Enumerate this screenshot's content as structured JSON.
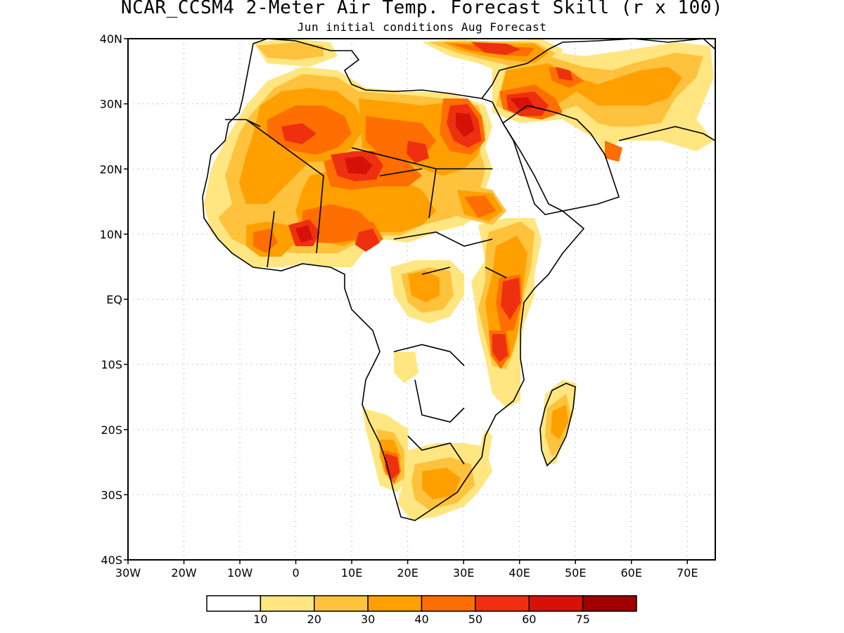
{
  "header": {
    "title": "NCAR_CCSM4 2-Meter Air Temp. Forecast Skill (r x 100)",
    "subtitle": "Jun initial conditions  Aug Forecast"
  },
  "map": {
    "region": "Africa and Middle East",
    "lon_range": [
      -30,
      75
    ],
    "lat_range": [
      -40,
      40
    ],
    "grid": true,
    "lat_ticks": [
      "40N",
      "30N",
      "20N",
      "10N",
      "EQ",
      "10S",
      "20S",
      "30S",
      "40S"
    ],
    "lon_ticks": [
      "30W",
      "20W",
      "10W",
      "0",
      "10E",
      "20E",
      "30E",
      "40E",
      "50E",
      "60E",
      "70E"
    ]
  },
  "colorbar": {
    "colors": [
      "#ffffff",
      "#ffe680",
      "#ffc23d",
      "#ffa000",
      "#ff6e00",
      "#ee3010",
      "#d61208",
      "#a00000"
    ],
    "labels": [
      "10",
      "20",
      "30",
      "40",
      "50",
      "60",
      "75"
    ]
  }
}
